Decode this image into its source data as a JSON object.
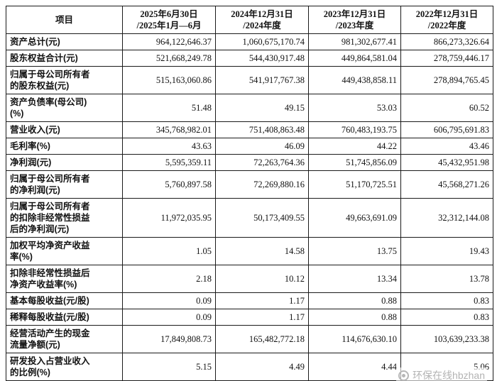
{
  "table": {
    "header": {
      "item_label": "项目",
      "periods": [
        "2025年6月30日\n/2025年1月—6月",
        "2024年12月31日\n/2024年度",
        "2023年12月31日\n/2023年度",
        "2022年12月31日\n/2022年度"
      ]
    },
    "rows": [
      {
        "label": "资产总计(元)",
        "values": [
          "964,122,646.37",
          "1,060,675,170.74",
          "981,302,677.41",
          "866,273,326.64"
        ]
      },
      {
        "label": "股东权益合计(元)",
        "values": [
          "521,668,249.78",
          "544,430,917.48",
          "449,864,581.04",
          "278,759,446.17"
        ]
      },
      {
        "label": "归属于母公司所有者\n的股东权益(元)",
        "values": [
          "515,163,060.86",
          "541,917,767.38",
          "449,438,858.11",
          "278,894,765.45"
        ]
      },
      {
        "label": "资产负债率(母公司)\n(%)",
        "values": [
          "51.48",
          "49.15",
          "53.03",
          "60.52"
        ]
      },
      {
        "label": "营业收入(元)",
        "values": [
          "345,768,982.01",
          "751,408,863.48",
          "760,483,193.75",
          "606,795,691.83"
        ]
      },
      {
        "label": "毛利率(%)",
        "values": [
          "43.63",
          "46.09",
          "44.22",
          "43.46"
        ]
      },
      {
        "label": "净利润(元)",
        "values": [
          "5,595,359.11",
          "72,263,764.36",
          "51,745,856.09",
          "45,432,951.98"
        ]
      },
      {
        "label": "归属于母公司所有者\n的净利润(元)",
        "values": [
          "5,760,897.58",
          "72,269,880.16",
          "51,170,725.51",
          "45,568,271.26"
        ]
      },
      {
        "label": "归属于母公司所有者\n的扣除非经常性损益\n后的净利润(元)",
        "values": [
          "11,972,035.95",
          "50,173,409.55",
          "49,663,691.09",
          "32,312,144.08"
        ]
      },
      {
        "label": "加权平均净资产收益\n率(%)",
        "values": [
          "1.05",
          "14.58",
          "13.75",
          "19.43"
        ]
      },
      {
        "label": "扣除非经常性损益后\n净资产收益率(%)",
        "values": [
          "2.18",
          "10.12",
          "13.34",
          "13.78"
        ]
      },
      {
        "label": "基本每股收益(元/股)",
        "values": [
          "0.09",
          "1.17",
          "0.88",
          "0.83"
        ]
      },
      {
        "label": "稀释每股收益(元/股)",
        "values": [
          "0.09",
          "1.17",
          "0.88",
          "0.83"
        ]
      },
      {
        "label": "经营活动产生的现金\n流量净额(元)",
        "values": [
          "17,849,808.73",
          "165,482,772.18",
          "114,676,630.10",
          "103,639,233.38"
        ]
      },
      {
        "label": "研发投入占营业收入\n的比例(%)",
        "values": [
          "5.15",
          "4.49",
          "4.44",
          "5.06"
        ]
      }
    ]
  },
  "watermark": {
    "text": "环保在线hbzhan"
  }
}
